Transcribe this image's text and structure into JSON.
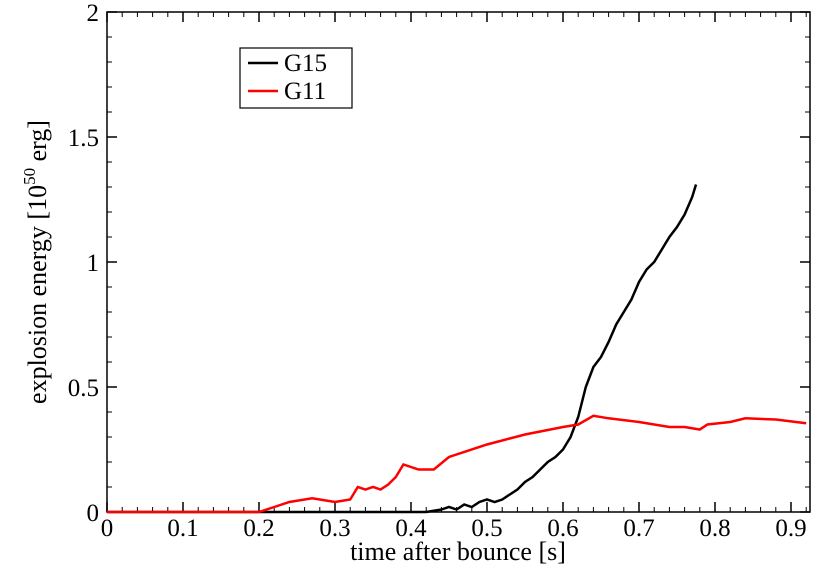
{
  "chart_data": {
    "type": "line",
    "xlabel": "time after bounce [s]",
    "ylabel": {
      "text": "explosion energy [10",
      "superscript": "50",
      "suffix": " erg]"
    },
    "xlim": [
      0,
      0.925
    ],
    "xticks": [
      0,
      0.1,
      0.2,
      0.3,
      0.4,
      0.5,
      0.6,
      0.7,
      0.8,
      0.9
    ],
    "ylim": [
      0,
      2
    ],
    "yticks": [
      0,
      0.5,
      1,
      1.5,
      2
    ],
    "minor_ticks_per_major": 5,
    "grid": false,
    "legend": "upper left",
    "series": [
      {
        "name": "G15",
        "color": "#000000",
        "x": [
          0,
          0.42,
          0.44,
          0.45,
          0.46,
          0.47,
          0.48,
          0.49,
          0.5,
          0.51,
          0.52,
          0.53,
          0.54,
          0.55,
          0.56,
          0.57,
          0.58,
          0.59,
          0.6,
          0.61,
          0.62,
          0.63,
          0.64,
          0.65,
          0.66,
          0.67,
          0.68,
          0.69,
          0.7,
          0.71,
          0.72,
          0.73,
          0.74,
          0.75,
          0.76,
          0.77,
          0.775
        ],
        "values": [
          0,
          0,
          0.01,
          0.02,
          0.01,
          0.03,
          0.02,
          0.04,
          0.05,
          0.04,
          0.05,
          0.07,
          0.09,
          0.12,
          0.14,
          0.17,
          0.2,
          0.22,
          0.25,
          0.3,
          0.38,
          0.5,
          0.58,
          0.62,
          0.68,
          0.75,
          0.8,
          0.85,
          0.92,
          0.97,
          1.0,
          1.05,
          1.1,
          1.14,
          1.19,
          1.26,
          1.31
        ]
      },
      {
        "name": "G11",
        "color": "#ff0000",
        "x": [
          0,
          0.2,
          0.22,
          0.24,
          0.27,
          0.28,
          0.3,
          0.32,
          0.33,
          0.34,
          0.35,
          0.36,
          0.37,
          0.38,
          0.39,
          0.41,
          0.43,
          0.45,
          0.5,
          0.55,
          0.6,
          0.62,
          0.64,
          0.66,
          0.7,
          0.74,
          0.76,
          0.78,
          0.79,
          0.82,
          0.84,
          0.88,
          0.92
        ],
        "values": [
          0,
          0,
          0.02,
          0.04,
          0.055,
          0.05,
          0.04,
          0.05,
          0.1,
          0.09,
          0.1,
          0.09,
          0.11,
          0.14,
          0.19,
          0.17,
          0.17,
          0.22,
          0.27,
          0.31,
          0.34,
          0.35,
          0.385,
          0.375,
          0.36,
          0.34,
          0.34,
          0.33,
          0.35,
          0.36,
          0.375,
          0.37,
          0.355
        ]
      }
    ]
  }
}
